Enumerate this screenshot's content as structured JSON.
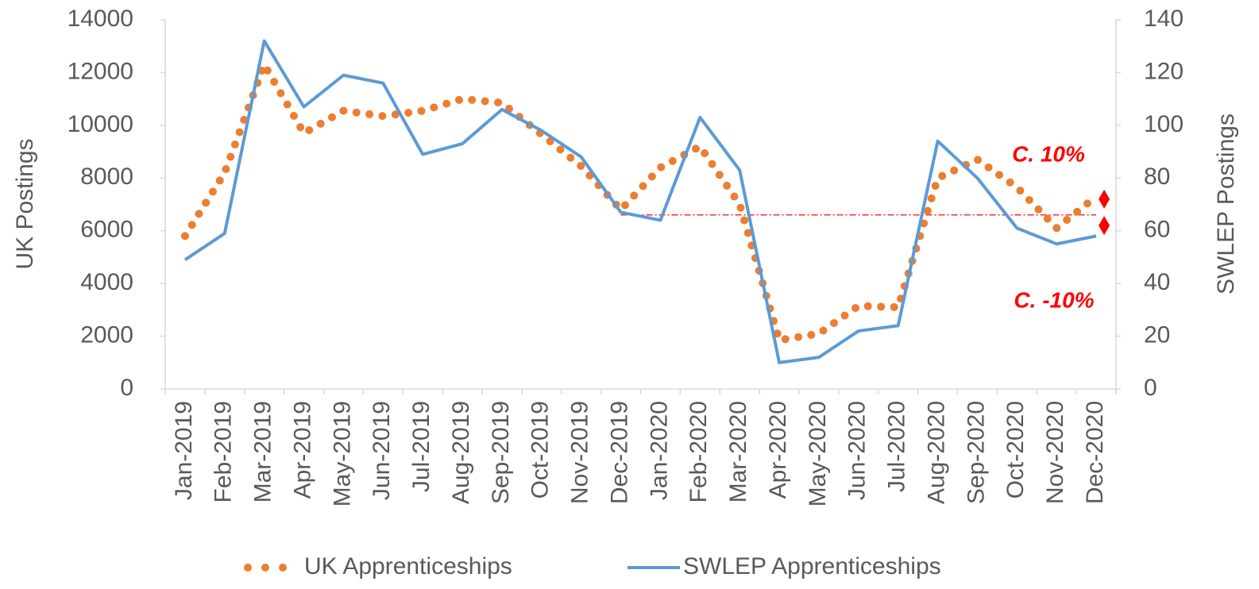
{
  "chart_data": {
    "type": "line",
    "categories": [
      "Jan-2019",
      "Feb-2019",
      "Mar-2019",
      "Apr-2019",
      "May-2019",
      "Jun-2019",
      "Jul-2019",
      "Aug-2019",
      "Sep-2019",
      "Oct-2019",
      "Nov-2019",
      "Dec-2019",
      "Jan-2020",
      "Feb-2020",
      "Mar-2020",
      "Apr-2020",
      "May-2020",
      "Jun-2020",
      "Jul-2020",
      "Aug-2020",
      "Sep-2020",
      "Oct-2020",
      "Nov-2020",
      "Dec-2020"
    ],
    "series": [
      {
        "name": "UK Apprenticeships",
        "color": "#ed7d31",
        "style": "dotted",
        "axis": "y",
        "values": [
          5800,
          8200,
          12300,
          9700,
          10550,
          10350,
          10550,
          11000,
          10850,
          9650,
          8450,
          6800,
          8400,
          9200,
          7000,
          1850,
          2100,
          3150,
          3100,
          8000,
          8700,
          7650,
          6100,
          7300
        ]
      },
      {
        "name": "SWLEP Apprenticeships",
        "color": "#5b9bd5",
        "style": "solid",
        "axis": "y2",
        "values": [
          49,
          59,
          132,
          107,
          119,
          116,
          89,
          93,
          106,
          98,
          88,
          67,
          64,
          103,
          83,
          10,
          12,
          22,
          24,
          94,
          80,
          61,
          55,
          58
        ]
      }
    ],
    "ylabel": "UK Postings",
    "y2label": "SWLEP Postings",
    "ylim": [
      0,
      14000
    ],
    "yticks": [
      0,
      2000,
      4000,
      6000,
      8000,
      10000,
      12000,
      14000
    ],
    "y2lim": [
      0,
      140
    ],
    "y2ticks": [
      0,
      20,
      40,
      60,
      80,
      100,
      120,
      140
    ],
    "reference_line": {
      "value": 66,
      "axis": "y2",
      "color": "#ff0000"
    },
    "markers": {
      "axis": "y2",
      "color": "#ff0000",
      "values": [
        72,
        62
      ]
    },
    "annotations": [
      "C. 10%",
      "C. -10%"
    ],
    "legend": "bottom"
  }
}
